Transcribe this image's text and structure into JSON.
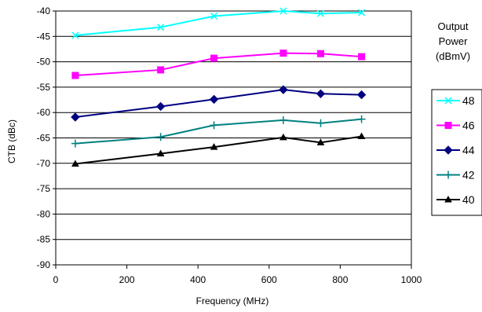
{
  "chart_data": {
    "type": "line",
    "xlabel": "Frequency (MHz)",
    "ylabel": "CTB (dBc)",
    "xlim": [
      0,
      1000
    ],
    "ylim": [
      -90,
      -40
    ],
    "x_ticks": [
      0,
      200,
      400,
      600,
      800,
      1000
    ],
    "y_ticks": [
      -40,
      -45,
      -50,
      -55,
      -60,
      -65,
      -70,
      -75,
      -80,
      -85,
      -90
    ],
    "grid": "horizontal",
    "legend_position": "right",
    "legend_title": [
      "Output",
      "Power",
      "(dBmV)"
    ],
    "series": [
      {
        "name": "48",
        "color": "#00FFFF",
        "marker": "x",
        "x": [
          55,
          295,
          445,
          640,
          745,
          860
        ],
        "y": [
          -44.8,
          -43.2,
          -41.0,
          -40.0,
          -40.5,
          -40.3
        ]
      },
      {
        "name": "46",
        "color": "#FF00FF",
        "marker": "square",
        "x": [
          55,
          295,
          445,
          640,
          745,
          860
        ],
        "y": [
          -52.7,
          -51.6,
          -49.3,
          -48.3,
          -48.4,
          -49.0
        ]
      },
      {
        "name": "44",
        "color": "#000080",
        "marker": "diamond",
        "x": [
          55,
          295,
          445,
          640,
          745,
          860
        ],
        "y": [
          -60.9,
          -58.8,
          -57.4,
          -55.5,
          -56.3,
          -56.5
        ]
      },
      {
        "name": "42",
        "color": "#008080",
        "marker": "plus",
        "x": [
          55,
          295,
          445,
          640,
          745,
          860
        ],
        "y": [
          -66.1,
          -64.8,
          -62.5,
          -61.5,
          -62.1,
          -61.3
        ]
      },
      {
        "name": "40",
        "color": "#000000",
        "marker": "triangle",
        "x": [
          55,
          295,
          445,
          640,
          745,
          860
        ],
        "y": [
          -70.1,
          -68.1,
          -66.8,
          -64.9,
          -65.9,
          -64.7
        ]
      }
    ]
  }
}
